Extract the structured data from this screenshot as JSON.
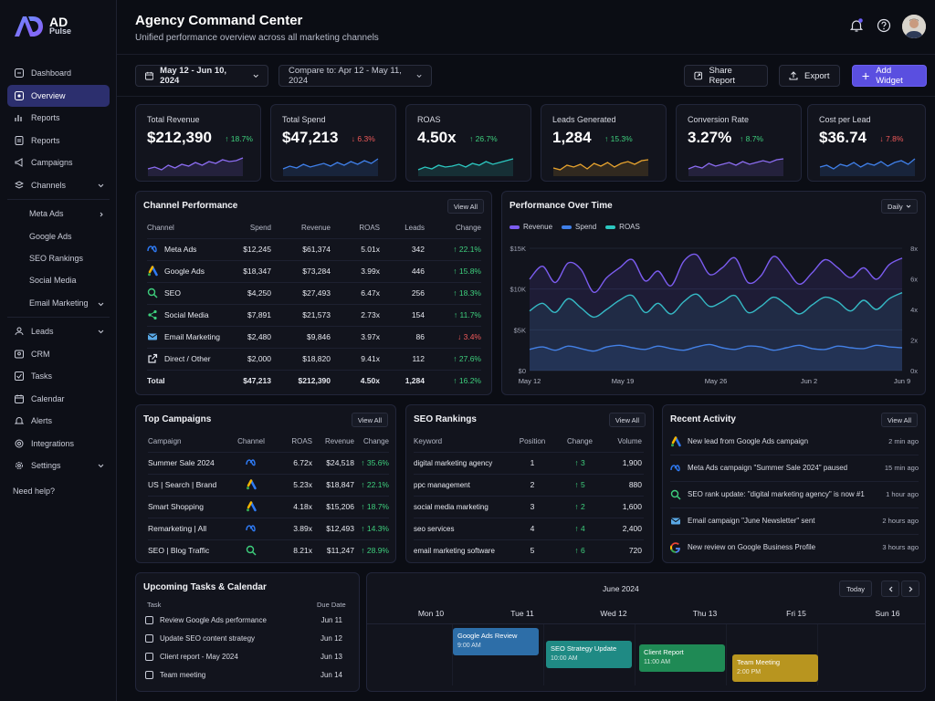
{
  "brand": {
    "line1": "AD",
    "line2": "Pulse"
  },
  "sidebar": {
    "items": [
      {
        "label": "Dashboard",
        "icon": "grid-icon"
      },
      {
        "label": "Overview",
        "icon": "eye-icon",
        "active": true
      },
      {
        "label": "Reports",
        "icon": "chart-icon"
      },
      {
        "label": "Reports",
        "icon": "file-icon"
      },
      {
        "label": "Campaigns",
        "icon": "megaphone-icon"
      },
      {
        "label": "Channels",
        "icon": "layers-icon"
      }
    ],
    "sub_items": [
      "Meta Ads",
      "Google Ads",
      "SEO Rankings",
      "Social Media",
      "Email Marketing"
    ],
    "items2": [
      {
        "label": "Leads",
        "icon": "users-icon"
      },
      {
        "label": "CRM",
        "icon": "contact-icon"
      },
      {
        "label": "Tasks",
        "icon": "check-icon"
      },
      {
        "label": "Calendar",
        "icon": "calendar-icon"
      },
      {
        "label": "Alerts",
        "icon": "bell-icon"
      },
      {
        "label": "Integrations",
        "icon": "plug-icon"
      },
      {
        "label": "Settings",
        "icon": "gear-icon"
      }
    ],
    "help": "Need help?"
  },
  "header": {
    "title": "Agency Command Center",
    "subtitle": "Unified performance overview across all marketing channels"
  },
  "toolbar": {
    "date_range": "May 12 - Jun 10, 2024",
    "compare": "Compare to: Apr 12 - May 11, 2024",
    "share": "Share Report",
    "export": "Export",
    "add_widget": "Add Widget"
  },
  "kpis": [
    {
      "label": "Total Revenue",
      "value": "$212,390",
      "change": "18.7%",
      "dir": "up",
      "color": "#8b6cf0"
    },
    {
      "label": "Total Spend",
      "value": "$47,213",
      "change": "6.3%",
      "dir": "down",
      "color": "#3f7fe8"
    },
    {
      "label": "ROAS",
      "value": "4.50x",
      "change": "26.7%",
      "dir": "up",
      "color": "#2cc7c0"
    },
    {
      "label": "Leads Generated",
      "value": "1,284",
      "change": "15.3%",
      "dir": "up",
      "color": "#e7a32e"
    },
    {
      "label": "Conversion Rate",
      "value": "3.27%",
      "change": "8.7%",
      "dir": "up",
      "color": "#8b6cf0"
    },
    {
      "label": "Cost per Lead",
      "value": "$36.74",
      "change": "7.8%",
      "dir": "down",
      "color": "#3f7fe8"
    }
  ],
  "channel_perf": {
    "title": "Channel Performance",
    "view_all": "View All",
    "headers": [
      "Channel",
      "Spend",
      "Revenue",
      "ROAS",
      "Leads",
      "Change"
    ],
    "rows": [
      {
        "icon": "meta-icon",
        "name": "Meta Ads",
        "spend": "$12,245",
        "revenue": "$61,374",
        "roas": "5.01x",
        "leads": "342",
        "change": "22.1%",
        "dir": "up"
      },
      {
        "icon": "google-ads-icon",
        "name": "Google Ads",
        "spend": "$18,347",
        "revenue": "$73,284",
        "roas": "3.99x",
        "leads": "446",
        "change": "15.8%",
        "dir": "up"
      },
      {
        "icon": "search-icon",
        "name": "SEO",
        "spend": "$4,250",
        "revenue": "$27,493",
        "roas": "6.47x",
        "leads": "256",
        "change": "18.3%",
        "dir": "up"
      },
      {
        "icon": "share-icon",
        "name": "Social Media",
        "spend": "$7,891",
        "revenue": "$21,573",
        "roas": "2.73x",
        "leads": "154",
        "change": "11.7%",
        "dir": "up"
      },
      {
        "icon": "mail-icon",
        "name": "Email Marketing",
        "spend": "$2,480",
        "revenue": "$9,846",
        "roas": "3.97x",
        "leads": "86",
        "change": "3.4%",
        "dir": "down"
      },
      {
        "icon": "external-link-icon",
        "name": "Direct / Other",
        "spend": "$2,000",
        "revenue": "$18,820",
        "roas": "9.41x",
        "leads": "112",
        "change": "27.6%",
        "dir": "up"
      }
    ],
    "total": {
      "name": "Total",
      "spend": "$47,213",
      "revenue": "$212,390",
      "roas": "4.50x",
      "leads": "1,284",
      "change": "16.2%",
      "dir": "up"
    }
  },
  "perf_chart": {
    "title": "Performance Over Time",
    "period": "Daily",
    "legend": [
      {
        "name": "Revenue",
        "color": "#7b5cf0"
      },
      {
        "name": "Spend",
        "color": "#3f7fe8"
      },
      {
        "name": "ROAS",
        "color": "#2cc7c0"
      }
    ]
  },
  "chart_data": {
    "type": "line",
    "title": "Performance Over Time",
    "x_ticks": [
      "May 12",
      "May 19",
      "May 26",
      "Jun 2",
      "Jun 9"
    ],
    "y_left_ticks": [
      "$0",
      "$5K",
      "$10K",
      "$15K"
    ],
    "y_right_ticks": [
      "0x",
      "2x",
      "4x",
      "6x",
      "8x"
    ],
    "ylim": [
      0,
      15000
    ],
    "y2lim": [
      0,
      8
    ],
    "series": [
      {
        "name": "Revenue",
        "axis": "left",
        "values": [
          11200,
          12800,
          10800,
          13200,
          12400,
          9600,
          11400,
          12600,
          13600,
          11000,
          12200,
          10400,
          13400,
          14200,
          11800,
          12600,
          13800,
          10800,
          11600,
          14000,
          12400,
          10600,
          12000,
          13600,
          12600,
          11400,
          12600,
          11200,
          13000,
          13800
        ]
      },
      {
        "name": "Spend",
        "axis": "left",
        "values": [
          2600,
          2900,
          2500,
          3000,
          2700,
          2400,
          2900,
          3100,
          2800,
          2600,
          3000,
          2700,
          2500,
          2900,
          3200,
          2800,
          2600,
          3000,
          2900,
          2500,
          2800,
          3100,
          2700,
          2600,
          3000,
          2800,
          2700,
          3100,
          2900,
          2800
        ]
      },
      {
        "name": "ROAS",
        "axis": "right",
        "values": [
          3.9,
          4.4,
          3.8,
          4.7,
          4.1,
          3.5,
          4.0,
          4.6,
          4.9,
          3.8,
          4.4,
          3.7,
          4.5,
          5.0,
          4.2,
          4.5,
          4.9,
          3.8,
          4.2,
          4.8,
          4.3,
          3.7,
          4.3,
          4.8,
          4.5,
          3.9,
          4.6,
          4.0,
          4.7,
          5.1
        ]
      }
    ]
  },
  "top_campaigns": {
    "title": "Top Campaigns",
    "view_all": "View All",
    "headers": [
      "Campaign",
      "Channel",
      "ROAS",
      "Revenue",
      "Change"
    ],
    "rows": [
      {
        "name": "Summer Sale 2024",
        "icon": "meta-icon",
        "roas": "6.72x",
        "revenue": "$24,518",
        "change": "35.6%"
      },
      {
        "name": "US | Search | Brand",
        "icon": "google-ads-icon",
        "roas": "5.23x",
        "revenue": "$18,847",
        "change": "22.1%"
      },
      {
        "name": "Smart Shopping",
        "icon": "google-ads-icon",
        "roas": "4.18x",
        "revenue": "$15,206",
        "change": "18.7%"
      },
      {
        "name": "Remarketing | All",
        "icon": "meta-icon",
        "roas": "3.89x",
        "revenue": "$12,493",
        "change": "14.3%"
      },
      {
        "name": "SEO | Blog Traffic",
        "icon": "search-icon",
        "roas": "8.21x",
        "revenue": "$11,247",
        "change": "28.9%"
      }
    ]
  },
  "seo_rankings": {
    "title": "SEO Rankings",
    "view_all": "View All",
    "headers": [
      "Keyword",
      "Position",
      "Change",
      "Volume"
    ],
    "rows": [
      {
        "keyword": "digital marketing agency",
        "position": "1",
        "change": "3",
        "volume": "1,900"
      },
      {
        "keyword": "ppc management",
        "position": "2",
        "change": "5",
        "volume": "880"
      },
      {
        "keyword": "social media marketing",
        "position": "3",
        "change": "2",
        "volume": "1,600"
      },
      {
        "keyword": "seo services",
        "position": "4",
        "change": "4",
        "volume": "2,400"
      },
      {
        "keyword": "email marketing software",
        "position": "5",
        "change": "6",
        "volume": "720"
      }
    ]
  },
  "activity": {
    "title": "Recent Activity",
    "view_all": "View All",
    "items": [
      {
        "icon": "google-ads-icon",
        "text": "New lead from Google Ads campaign",
        "time": "2 min ago"
      },
      {
        "icon": "meta-icon",
        "text": "Meta Ads campaign \"Summer Sale 2024\" paused",
        "time": "15 min ago"
      },
      {
        "icon": "search-icon",
        "text": "SEO rank update: \"digital marketing agency\" is now #1",
        "time": "1 hour ago"
      },
      {
        "icon": "mail-icon",
        "text": "Email campaign \"June Newsletter\" sent",
        "time": "2 hours ago"
      },
      {
        "icon": "google-icon",
        "text": "New review on Google Business Profile",
        "time": "3 hours ago"
      }
    ]
  },
  "tasks": {
    "title": "Upcoming Tasks & Calendar",
    "col_task": "Task",
    "col_due": "Due Date",
    "items": [
      {
        "name": "Review Google Ads performance",
        "due": "Jun 11"
      },
      {
        "name": "Update SEO content strategy",
        "due": "Jun 12"
      },
      {
        "name": "Client report - May 2024",
        "due": "Jun 13"
      },
      {
        "name": "Team meeting",
        "due": "Jun 14"
      }
    ]
  },
  "calendar": {
    "month": "June 2024",
    "today": "Today",
    "days": [
      "Mon 10",
      "Tue 11",
      "Wed 12",
      "Thu 13",
      "Fri 15",
      "Sun 16"
    ],
    "events": [
      {
        "title": "Google Ads Review",
        "time": "9:00 AM",
        "color": "#2d6ea8"
      },
      {
        "title": "SEO Strategy Update",
        "time": "10:00 AM",
        "color": "#1f8a84"
      },
      {
        "title": "Client Report",
        "time": "11:00 AM",
        "color": "#1f8a55"
      },
      {
        "title": "Team Meeting",
        "time": "2:00 PM",
        "color": "#b8951f"
      }
    ]
  }
}
